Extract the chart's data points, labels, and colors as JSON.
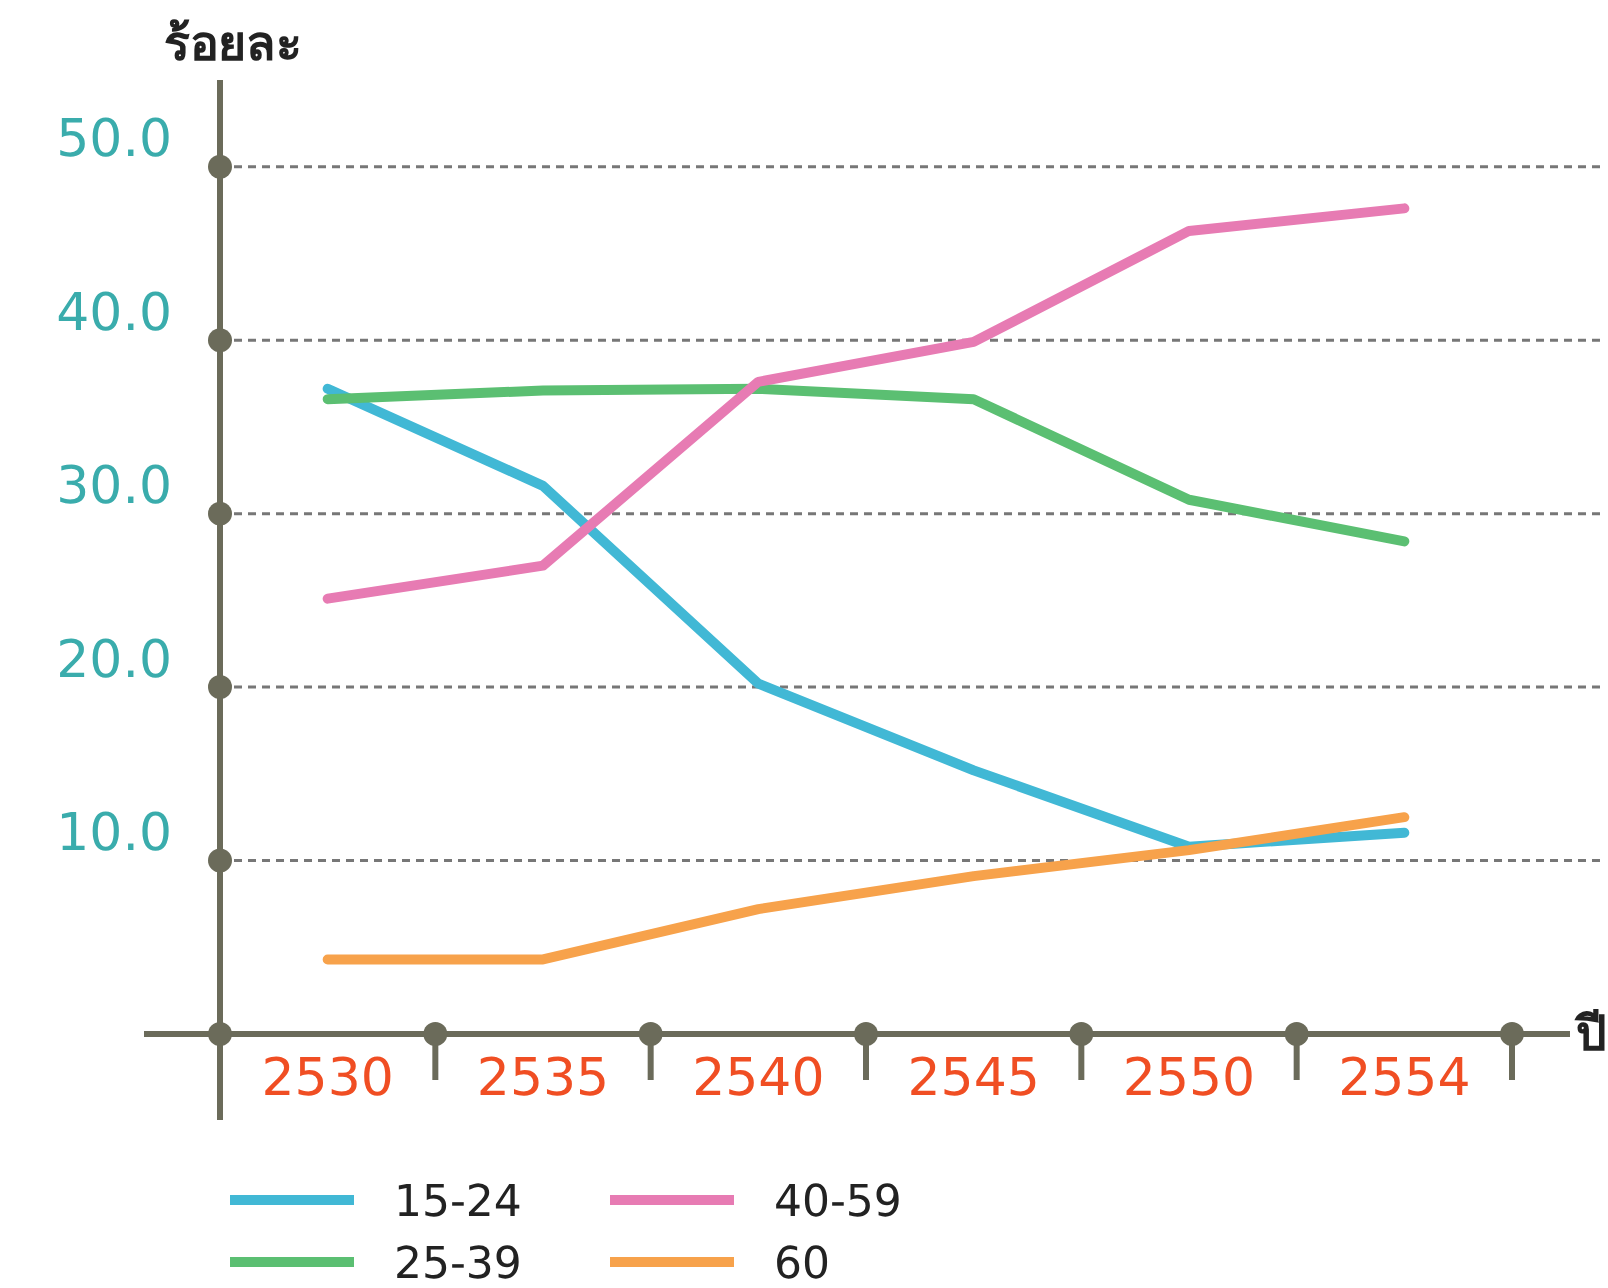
{
  "chart_data": {
    "type": "line",
    "xlabel": "ปี",
    "ylabel": "ร้อยละ",
    "categories": [
      "2530",
      "2535",
      "2540",
      "2545",
      "2550",
      "2554"
    ],
    "series": [
      {
        "name": "15-24",
        "color": "#41b8d5",
        "values": [
          37.2,
          31.6,
          20.2,
          15.2,
          10.8,
          11.6
        ]
      },
      {
        "name": "25-39",
        "color": "#5bbf72",
        "values": [
          36.6,
          37.1,
          37.2,
          36.6,
          30.8,
          28.4
        ]
      },
      {
        "name": "40-59",
        "color": "#e77bb3",
        "values": [
          25.1,
          27.0,
          37.6,
          39.9,
          46.3,
          47.6
        ]
      },
      {
        "name": "60",
        "color": "#f7a24b",
        "values": [
          4.3,
          4.3,
          7.2,
          9.1,
          10.6,
          12.5
        ]
      }
    ],
    "ylim": [
      0,
      55
    ],
    "yticks": [
      {
        "value": 10,
        "label": "10.0"
      },
      {
        "value": 20,
        "label": "20.0"
      },
      {
        "value": 30,
        "label": "30.0"
      },
      {
        "value": 40,
        "label": "40.0"
      },
      {
        "value": 50,
        "label": "50.0"
      }
    ],
    "grid": "y",
    "legend": "bottom",
    "marker": "none",
    "line_style": "solid"
  }
}
